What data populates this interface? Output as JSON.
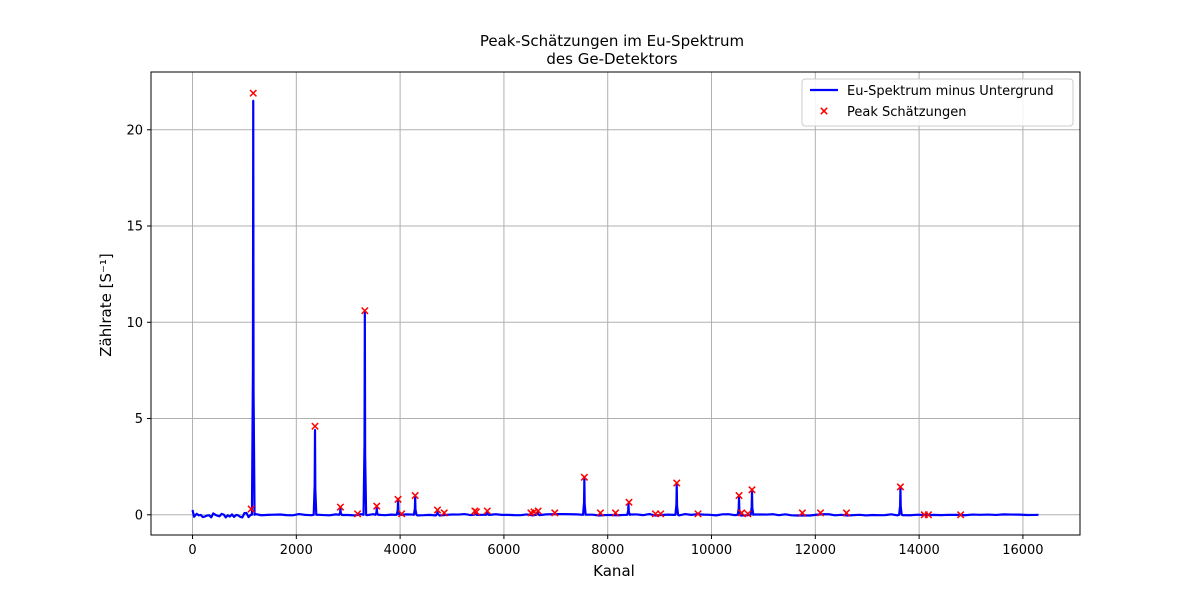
{
  "chart_data": {
    "type": "line",
    "title": "Peak-Schätzungen im Eu-Spektrum",
    "subtitle": "des Ge-Detektors",
    "xlabel": "Kanal",
    "ylabel": "Zählrate [S⁻¹]",
    "xlim": [
      -800,
      17100
    ],
    "ylim": [
      -1.05,
      23.0
    ],
    "xticks": [
      0,
      2000,
      4000,
      6000,
      8000,
      10000,
      12000,
      14000,
      16000
    ],
    "yticks": [
      0,
      5,
      10,
      15,
      20
    ],
    "grid": true,
    "legend_position": "top-right",
    "series": [
      {
        "name": "Eu-Spektrum minus Untergrund",
        "color": "#0000ff",
        "baseline": 0.0,
        "x_end": 16300,
        "peaks": [
          {
            "x": 1170,
            "y": 21.5
          },
          {
            "x": 2360,
            "y": 4.4
          },
          {
            "x": 2850,
            "y": 0.3
          },
          {
            "x": 3320,
            "y": 10.5
          },
          {
            "x": 3550,
            "y": 0.35
          },
          {
            "x": 3960,
            "y": 0.7
          },
          {
            "x": 4290,
            "y": 0.9
          },
          {
            "x": 4720,
            "y": 0.15
          },
          {
            "x": 5450,
            "y": 0.15
          },
          {
            "x": 5680,
            "y": 0.1
          },
          {
            "x": 6650,
            "y": 0.15
          },
          {
            "x": 7550,
            "y": 1.85
          },
          {
            "x": 8400,
            "y": 0.55
          },
          {
            "x": 9330,
            "y": 1.55
          },
          {
            "x": 10530,
            "y": 0.9
          },
          {
            "x": 10780,
            "y": 1.2
          },
          {
            "x": 13640,
            "y": 1.35
          }
        ]
      },
      {
        "name": "Peak Schätzungen",
        "color": "#ff0000",
        "marker": "x",
        "points": [
          [
            1130,
            0.3
          ],
          [
            1170,
            21.9
          ],
          [
            2360,
            4.6
          ],
          [
            2850,
            0.4
          ],
          [
            3180,
            0.05
          ],
          [
            3320,
            10.6
          ],
          [
            3550,
            0.45
          ],
          [
            3960,
            0.8
          ],
          [
            4030,
            0.05
          ],
          [
            4290,
            1.0
          ],
          [
            4720,
            0.25
          ],
          [
            4850,
            0.1
          ],
          [
            5440,
            0.2
          ],
          [
            5470,
            0.15
          ],
          [
            5680,
            0.2
          ],
          [
            6520,
            0.1
          ],
          [
            6580,
            0.15
          ],
          [
            6660,
            0.2
          ],
          [
            6980,
            0.1
          ],
          [
            7550,
            1.95
          ],
          [
            7860,
            0.1
          ],
          [
            8150,
            0.1
          ],
          [
            8410,
            0.65
          ],
          [
            8920,
            0.05
          ],
          [
            9020,
            0.05
          ],
          [
            9330,
            1.65
          ],
          [
            9740,
            0.05
          ],
          [
            10530,
            1.0
          ],
          [
            10580,
            0.1
          ],
          [
            10700,
            0.05
          ],
          [
            10780,
            1.3
          ],
          [
            11750,
            0.1
          ],
          [
            12100,
            0.1
          ],
          [
            12600,
            0.1
          ],
          [
            13640,
            1.45
          ],
          [
            14100,
            0.0
          ],
          [
            14180,
            0.0
          ],
          [
            14800,
            0.0
          ]
        ]
      }
    ]
  }
}
